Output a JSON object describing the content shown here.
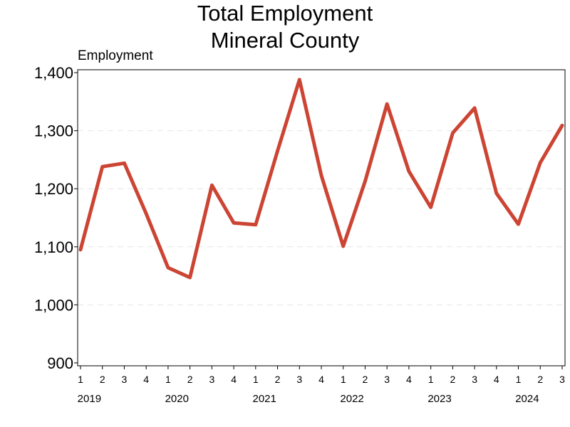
{
  "chart_data": {
    "type": "line",
    "title": "Total Employment",
    "subtitle": "Mineral County",
    "ylabel": "Employment",
    "ylim": [
      895,
      1405
    ],
    "yticks": [
      900,
      1000,
      1100,
      1200,
      1300,
      1400
    ],
    "ytick_labels": [
      "900",
      "1,000",
      "1,100",
      "1,200",
      "1,300",
      "1,400"
    ],
    "grid": "horizontal dashed",
    "quarter_labels": [
      "1",
      "2",
      "3",
      "4",
      "1",
      "2",
      "3",
      "4",
      "1",
      "2",
      "3",
      "4",
      "1",
      "2",
      "3",
      "4",
      "1",
      "2",
      "3",
      "4",
      "1",
      "2",
      "3"
    ],
    "years": [
      "2019",
      "2020",
      "2021",
      "2022",
      "2023",
      "2024"
    ],
    "line_color": "#cc4433",
    "values": [
      1095,
      1238,
      1244,
      1157,
      1064,
      1047,
      1206,
      1141,
      1138,
      1265,
      1388,
      1223,
      1101,
      1213,
      1346,
      1230,
      1168,
      1296,
      1339,
      1192,
      1139,
      1245,
      1309
    ]
  }
}
